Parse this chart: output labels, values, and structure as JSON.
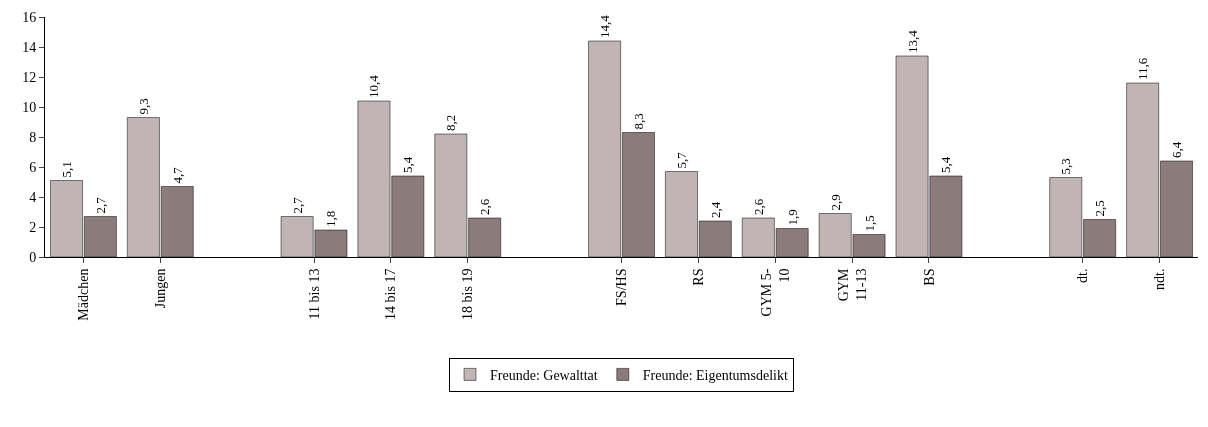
{
  "chart_data": {
    "type": "bar",
    "categories": [
      "Mädchen",
      "Jungen",
      null,
      "11 bis 13",
      "14 bis 17",
      "18 bis 19",
      null,
      "FS/HS",
      "RS",
      "GYM 5-\n10",
      "GYM\n11-13",
      "BS",
      null,
      "dt.",
      "ndt."
    ],
    "series": [
      {
        "name": "Freunde: Gewalttat",
        "color": "#c0b4b4",
        "values": [
          5.1,
          9.3,
          null,
          2.7,
          10.4,
          8.2,
          null,
          14.4,
          5.7,
          2.6,
          2.9,
          13.4,
          null,
          5.3,
          11.6
        ],
        "value_labels": [
          "5,1",
          "9,3",
          null,
          "2,7",
          "10,4",
          "8,2",
          null,
          "14,4",
          "5,7",
          "2,6",
          "2,9",
          "13,4",
          null,
          "5,3",
          "11,6"
        ]
      },
      {
        "name": "Freunde: Eigentumsdelikt",
        "color": "#8c7b7b",
        "values": [
          2.7,
          4.7,
          null,
          1.8,
          5.4,
          2.6,
          null,
          8.3,
          2.4,
          1.9,
          1.5,
          5.4,
          null,
          2.5,
          6.4
        ],
        "value_labels": [
          "2,7",
          "4,7",
          null,
          "1,8",
          "5,4",
          "2,6",
          null,
          "8,3",
          "2,4",
          "1,9",
          "1,5",
          "5,4",
          null,
          "2,5",
          "6,4"
        ]
      }
    ],
    "ylim": [
      0,
      16
    ],
    "yticks": [
      0,
      2,
      4,
      6,
      8,
      10,
      12,
      14,
      16
    ],
    "grid": false,
    "legend": "bottom"
  }
}
